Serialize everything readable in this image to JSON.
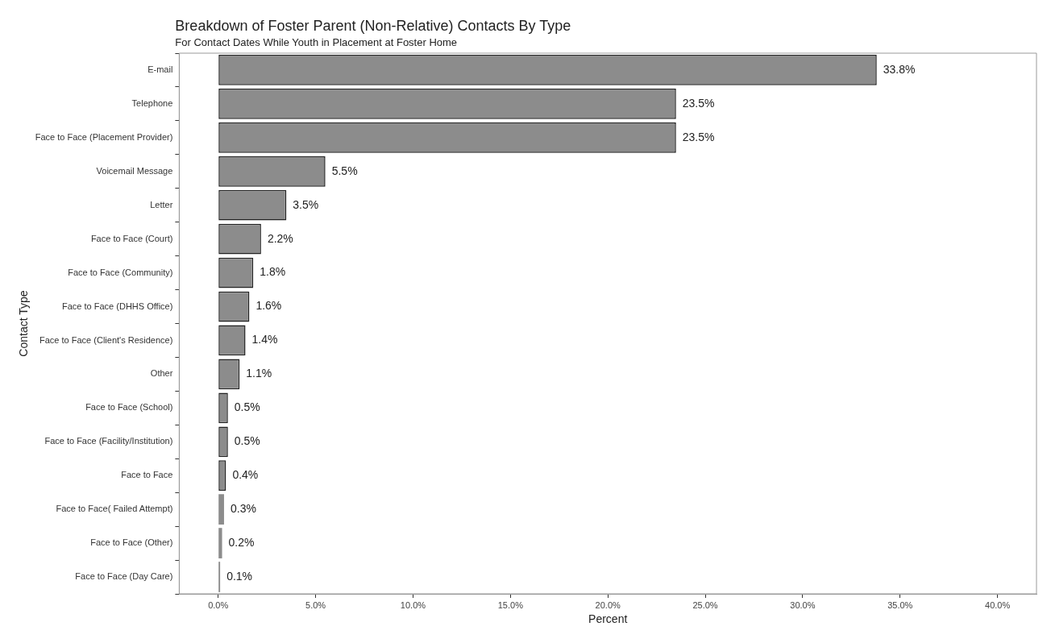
{
  "chart_data": {
    "type": "bar",
    "orientation": "horizontal",
    "title": "Breakdown of Foster Parent (Non-Relative) Contacts By Type",
    "subtitle": "For Contact Dates While Youth in Placement at Foster Home",
    "xlabel": "Percent",
    "ylabel": "Contact Type",
    "categories": [
      "E-mail",
      "Telephone",
      "Face to Face (Placement Provider)",
      "Voicemail Message",
      "Letter",
      "Face to Face (Court)",
      "Face to Face (Community)",
      "Face to Face (DHHS Office)",
      "Face to Face (Client's Residence)",
      "Other",
      "Face to Face (School)",
      "Face to Face (Facility/Institution)",
      "Face to Face",
      "Face to Face( Failed Attempt)",
      "Face to Face (Other)",
      "Face to Face (Day Care)"
    ],
    "values": [
      33.8,
      23.5,
      23.5,
      5.5,
      3.5,
      2.2,
      1.8,
      1.6,
      1.4,
      1.1,
      0.5,
      0.5,
      0.4,
      0.3,
      0.2,
      0.1
    ],
    "value_labels": [
      "33.8%",
      "23.5%",
      "23.5%",
      "5.5%",
      "3.5%",
      "2.2%",
      "1.8%",
      "1.6%",
      "1.4%",
      "1.1%",
      "0.5%",
      "0.5%",
      "0.4%",
      "0.3%",
      "0.2%",
      "0.1%"
    ],
    "color": "#8c8c8c",
    "xlim": [
      -2,
      42
    ],
    "xticks": [
      {
        "value": 0,
        "label": "0.0%"
      },
      {
        "value": 5,
        "label": "5.0%"
      },
      {
        "value": 10,
        "label": "10.0%"
      },
      {
        "value": 15,
        "label": "15.0%"
      },
      {
        "value": 20,
        "label": "20.0%"
      },
      {
        "value": 25,
        "label": "25.0%"
      },
      {
        "value": 30,
        "label": "30.0%"
      },
      {
        "value": 35,
        "label": "35.0%"
      },
      {
        "value": 40,
        "label": "40.0%"
      }
    ],
    "grid": false,
    "legend": false
  }
}
